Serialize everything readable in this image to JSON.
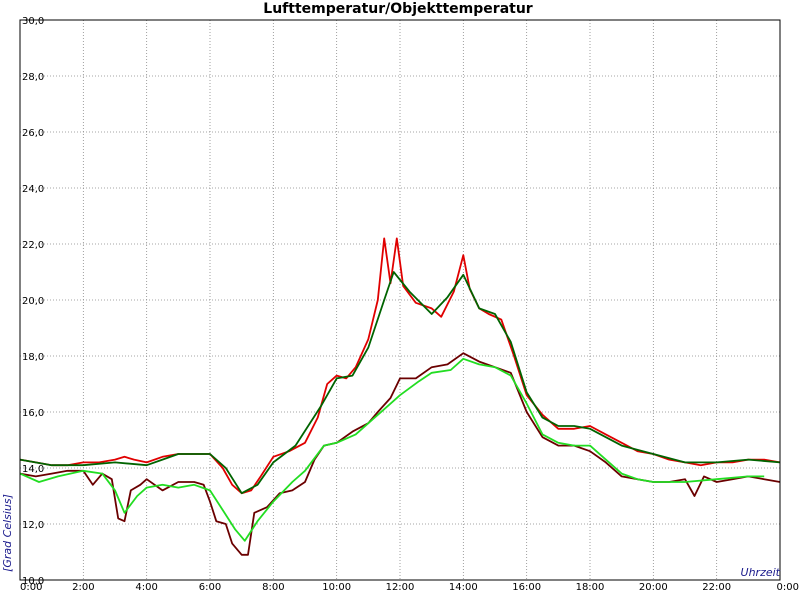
{
  "chart_data": {
    "type": "line",
    "title": "Lufttemperatur/Objekttemperatur",
    "xlabel": "Uhrzeit",
    "ylabel": "[Grad Celsius]",
    "xlim": [
      0,
      24
    ],
    "ylim": [
      10,
      30
    ],
    "x_ticks": [
      {
        "value": 0,
        "label": "0:00"
      },
      {
        "value": 2,
        "label": "2:00"
      },
      {
        "value": 4,
        "label": "4:00"
      },
      {
        "value": 6,
        "label": "6:00"
      },
      {
        "value": 8,
        "label": "8:00"
      },
      {
        "value": 10,
        "label": "10:00"
      },
      {
        "value": 12,
        "label": "12:00"
      },
      {
        "value": 14,
        "label": "14:00"
      },
      {
        "value": 16,
        "label": "16:00"
      },
      {
        "value": 18,
        "label": "18:00"
      },
      {
        "value": 20,
        "label": "20:00"
      },
      {
        "value": 22,
        "label": "22:00"
      },
      {
        "value": 24,
        "label": "0:00"
      }
    ],
    "y_ticks": [
      {
        "value": 10,
        "label": "10,0"
      },
      {
        "value": 12,
        "label": "12,0"
      },
      {
        "value": 14,
        "label": "14,0"
      },
      {
        "value": 16,
        "label": "16,0"
      },
      {
        "value": 18,
        "label": "18,0"
      },
      {
        "value": 20,
        "label": "20,0"
      },
      {
        "value": 22,
        "label": "22,0"
      },
      {
        "value": 24,
        "label": "24,0"
      },
      {
        "value": 26,
        "label": "26,0"
      },
      {
        "value": 28,
        "label": "28,0"
      },
      {
        "value": 30,
        "label": "30,0"
      }
    ],
    "grid": true,
    "series": [
      {
        "color": "#e00000",
        "points": [
          [
            0,
            14.3
          ],
          [
            0.5,
            14.2
          ],
          [
            1.0,
            14.1
          ],
          [
            1.5,
            14.1
          ],
          [
            2.0,
            14.2
          ],
          [
            2.5,
            14.2
          ],
          [
            3.0,
            14.3
          ],
          [
            3.3,
            14.4
          ],
          [
            3.6,
            14.3
          ],
          [
            4.0,
            14.2
          ],
          [
            4.5,
            14.4
          ],
          [
            5.0,
            14.5
          ],
          [
            5.5,
            14.5
          ],
          [
            6.0,
            14.5
          ],
          [
            6.4,
            14.0
          ],
          [
            6.7,
            13.4
          ],
          [
            7.0,
            13.1
          ],
          [
            7.3,
            13.2
          ],
          [
            7.6,
            13.7
          ],
          [
            8.0,
            14.4
          ],
          [
            8.5,
            14.6
          ],
          [
            9.0,
            14.9
          ],
          [
            9.4,
            15.8
          ],
          [
            9.7,
            17.0
          ],
          [
            10.0,
            17.3
          ],
          [
            10.3,
            17.2
          ],
          [
            10.6,
            17.6
          ],
          [
            11.0,
            18.6
          ],
          [
            11.3,
            20.0
          ],
          [
            11.5,
            22.2
          ],
          [
            11.7,
            20.6
          ],
          [
            11.9,
            22.2
          ],
          [
            12.1,
            20.5
          ],
          [
            12.5,
            19.9
          ],
          [
            13.0,
            19.7
          ],
          [
            13.3,
            19.4
          ],
          [
            13.7,
            20.3
          ],
          [
            14.0,
            21.6
          ],
          [
            14.2,
            20.4
          ],
          [
            14.5,
            19.7
          ],
          [
            14.8,
            19.5
          ],
          [
            15.2,
            19.3
          ],
          [
            15.6,
            18.0
          ],
          [
            16.0,
            16.6
          ],
          [
            16.5,
            15.9
          ],
          [
            17.0,
            15.4
          ],
          [
            17.5,
            15.4
          ],
          [
            18.0,
            15.5
          ],
          [
            18.5,
            15.2
          ],
          [
            19.0,
            14.9
          ],
          [
            19.5,
            14.6
          ],
          [
            20.0,
            14.5
          ],
          [
            20.5,
            14.3
          ],
          [
            21.0,
            14.2
          ],
          [
            21.5,
            14.1
          ],
          [
            22.0,
            14.2
          ],
          [
            22.5,
            14.2
          ],
          [
            23.0,
            14.3
          ],
          [
            23.5,
            14.3
          ],
          [
            24.0,
            14.2
          ]
        ]
      },
      {
        "color": "#006400",
        "points": [
          [
            0,
            14.3
          ],
          [
            1.0,
            14.1
          ],
          [
            2.0,
            14.1
          ],
          [
            3.0,
            14.2
          ],
          [
            4.0,
            14.1
          ],
          [
            4.5,
            14.3
          ],
          [
            5.0,
            14.5
          ],
          [
            5.5,
            14.5
          ],
          [
            6.0,
            14.5
          ],
          [
            6.5,
            14.0
          ],
          [
            7.0,
            13.1
          ],
          [
            7.5,
            13.4
          ],
          [
            8.0,
            14.2
          ],
          [
            8.7,
            14.8
          ],
          [
            9.5,
            16.2
          ],
          [
            10.0,
            17.2
          ],
          [
            10.5,
            17.3
          ],
          [
            11.0,
            18.3
          ],
          [
            11.5,
            20.0
          ],
          [
            11.8,
            21.0
          ],
          [
            12.3,
            20.3
          ],
          [
            13.0,
            19.5
          ],
          [
            13.5,
            20.1
          ],
          [
            14.0,
            20.9
          ],
          [
            14.5,
            19.7
          ],
          [
            15.0,
            19.5
          ],
          [
            15.5,
            18.5
          ],
          [
            16.0,
            16.7
          ],
          [
            16.5,
            15.8
          ],
          [
            17.0,
            15.5
          ],
          [
            17.5,
            15.5
          ],
          [
            18.0,
            15.4
          ],
          [
            19.0,
            14.8
          ],
          [
            20.0,
            14.5
          ],
          [
            21.0,
            14.2
          ],
          [
            22.0,
            14.2
          ],
          [
            23.0,
            14.3
          ],
          [
            24.0,
            14.2
          ]
        ]
      },
      {
        "color": "#6b0000",
        "points": [
          [
            0,
            13.8
          ],
          [
            0.5,
            13.7
          ],
          [
            1.0,
            13.8
          ],
          [
            1.5,
            13.9
          ],
          [
            2.0,
            13.9
          ],
          [
            2.3,
            13.4
          ],
          [
            2.6,
            13.8
          ],
          [
            2.9,
            13.6
          ],
          [
            3.1,
            12.2
          ],
          [
            3.3,
            12.1
          ],
          [
            3.5,
            13.2
          ],
          [
            3.8,
            13.4
          ],
          [
            4.0,
            13.6
          ],
          [
            4.5,
            13.2
          ],
          [
            5.0,
            13.5
          ],
          [
            5.5,
            13.5
          ],
          [
            5.8,
            13.4
          ],
          [
            6.0,
            12.8
          ],
          [
            6.2,
            12.1
          ],
          [
            6.5,
            12.0
          ],
          [
            6.7,
            11.3
          ],
          [
            7.0,
            10.9
          ],
          [
            7.2,
            10.9
          ],
          [
            7.4,
            12.4
          ],
          [
            7.8,
            12.6
          ],
          [
            8.2,
            13.1
          ],
          [
            8.6,
            13.2
          ],
          [
            9.0,
            13.5
          ],
          [
            9.3,
            14.3
          ],
          [
            9.6,
            14.8
          ],
          [
            10.0,
            14.9
          ],
          [
            10.5,
            15.3
          ],
          [
            11.0,
            15.6
          ],
          [
            11.3,
            16.0
          ],
          [
            11.7,
            16.5
          ],
          [
            12.0,
            17.2
          ],
          [
            12.5,
            17.2
          ],
          [
            13.0,
            17.6
          ],
          [
            13.5,
            17.7
          ],
          [
            14.0,
            18.1
          ],
          [
            14.5,
            17.8
          ],
          [
            15.0,
            17.6
          ],
          [
            15.5,
            17.4
          ],
          [
            16.0,
            16.0
          ],
          [
            16.5,
            15.1
          ],
          [
            17.0,
            14.8
          ],
          [
            17.5,
            14.8
          ],
          [
            18.0,
            14.6
          ],
          [
            18.5,
            14.2
          ],
          [
            19.0,
            13.7
          ],
          [
            19.5,
            13.6
          ],
          [
            20.0,
            13.5
          ],
          [
            20.5,
            13.5
          ],
          [
            21.0,
            13.6
          ],
          [
            21.3,
            13.0
          ],
          [
            21.6,
            13.7
          ],
          [
            22.0,
            13.5
          ],
          [
            22.5,
            13.6
          ],
          [
            23.0,
            13.7
          ],
          [
            23.5,
            13.6
          ],
          [
            24.0,
            13.5
          ]
        ]
      },
      {
        "color": "#22dd22",
        "points": [
          [
            0,
            13.8
          ],
          [
            0.6,
            13.5
          ],
          [
            1.2,
            13.7
          ],
          [
            2.0,
            13.9
          ],
          [
            2.6,
            13.8
          ],
          [
            3.0,
            13.2
          ],
          [
            3.3,
            12.4
          ],
          [
            3.7,
            13.0
          ],
          [
            4.0,
            13.3
          ],
          [
            4.5,
            13.4
          ],
          [
            5.0,
            13.3
          ],
          [
            5.5,
            13.4
          ],
          [
            6.0,
            13.2
          ],
          [
            6.4,
            12.5
          ],
          [
            6.8,
            11.8
          ],
          [
            7.1,
            11.4
          ],
          [
            7.5,
            12.1
          ],
          [
            8.0,
            12.8
          ],
          [
            8.6,
            13.5
          ],
          [
            9.0,
            13.9
          ],
          [
            9.6,
            14.8
          ],
          [
            10.0,
            14.9
          ],
          [
            10.6,
            15.2
          ],
          [
            11.2,
            15.8
          ],
          [
            12.0,
            16.6
          ],
          [
            12.6,
            17.1
          ],
          [
            13.0,
            17.4
          ],
          [
            13.6,
            17.5
          ],
          [
            14.0,
            17.9
          ],
          [
            14.5,
            17.7
          ],
          [
            15.0,
            17.6
          ],
          [
            15.5,
            17.3
          ],
          [
            16.0,
            16.3
          ],
          [
            16.5,
            15.2
          ],
          [
            17.0,
            14.9
          ],
          [
            17.5,
            14.8
          ],
          [
            18.0,
            14.8
          ],
          [
            18.5,
            14.3
          ],
          [
            19.0,
            13.8
          ],
          [
            19.5,
            13.6
          ],
          [
            20.0,
            13.5
          ],
          [
            21.0,
            13.5
          ],
          [
            22.0,
            13.6
          ],
          [
            23.0,
            13.7
          ],
          [
            23.5,
            13.7
          ]
        ]
      }
    ]
  }
}
